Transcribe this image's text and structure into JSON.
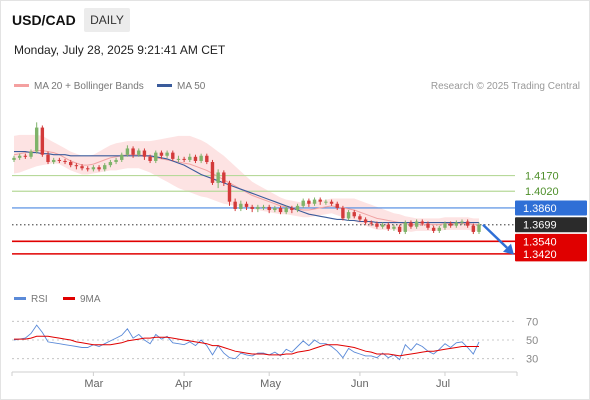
{
  "header": {
    "symbol": "USD/CAD",
    "timeframe": "DAILY"
  },
  "timestamp": "Monday, July 28, 2025 9:21:41 AM CET",
  "legend_main": [
    {
      "label": "MA 20 + Bollinger Bands",
      "color": "#f4a0a0"
    },
    {
      "label": "MA 50",
      "color": "#3a5b9b"
    }
  ],
  "credit": "Research © 2025 Trading Central",
  "legend_rsi": [
    {
      "label": "RSI",
      "color": "#5b8ad8"
    },
    {
      "label": "9MA",
      "color": "#e00000"
    }
  ],
  "colors": {
    "up": "#7fb36a",
    "down": "#d33a3a",
    "rsi": "#5b8ad8",
    "rsi_ma": "#e00000"
  },
  "chart_data": [
    {
      "type": "candlestick",
      "title": "USD/CAD",
      "ylim": [
        1.339,
        1.476
      ],
      "x_labels": [
        "Mar",
        "Apr",
        "May",
        "Jun",
        "Jul"
      ],
      "levels": [
        {
          "label": "1.4170",
          "value": 1.417,
          "kind": "resistance",
          "color": "#b7d99a",
          "text_color": "#4e8f2a"
        },
        {
          "label": "1.4020",
          "value": 1.402,
          "kind": "resistance",
          "color": "#b7d99a",
          "text_color": "#4e8f2a"
        },
        {
          "label": "1.3860",
          "value": 1.386,
          "kind": "pivot",
          "color": "#4a87e0",
          "text_color": "#ffffff",
          "fill": "#2f6fd6"
        },
        {
          "label": "1.3699",
          "value": 1.3699,
          "kind": "last",
          "color": "#333333",
          "text_color": "#ffffff",
          "fill": "#2b2b2b"
        },
        {
          "label": "1.3540",
          "value": 1.354,
          "kind": "support",
          "color": "#e00000",
          "text_color": "#ffffff",
          "fill": "#e00000"
        },
        {
          "label": "1.3420",
          "value": 1.342,
          "kind": "support",
          "color": "#e00000",
          "text_color": "#ffffff",
          "fill": "#e00000"
        }
      ],
      "forecast": {
        "from": 1.3699,
        "to": 1.345,
        "direction": "down"
      },
      "ma20": [
        1.437,
        1.438,
        1.439,
        1.44,
        1.441,
        1.441,
        1.44,
        1.439,
        1.437,
        1.434,
        1.431,
        1.429,
        1.427,
        1.427,
        1.428,
        1.43,
        1.432,
        1.434,
        1.435,
        1.436,
        1.437,
        1.437,
        1.437,
        1.436,
        1.435,
        1.434,
        1.433,
        1.432,
        1.431,
        1.43,
        1.429,
        1.428,
        1.426,
        1.424,
        1.422,
        1.419,
        1.416,
        1.413,
        1.41,
        1.407,
        1.404,
        1.401,
        1.398,
        1.396,
        1.394,
        1.392,
        1.39,
        1.388,
        1.387,
        1.386,
        1.385,
        1.384,
        1.384,
        1.385,
        1.386,
        1.387,
        1.388,
        1.387,
        1.386,
        1.385,
        1.384,
        1.382,
        1.38,
        1.378,
        1.376,
        1.375,
        1.374,
        1.373,
        1.372,
        1.371,
        1.37,
        1.37,
        1.37,
        1.37,
        1.37,
        1.37,
        1.371,
        1.371,
        1.371,
        1.371,
        1.371,
        1.37,
        1.37
      ],
      "ma50": [
        1.44,
        1.44,
        1.44,
        1.439,
        1.439,
        1.438,
        1.438,
        1.437,
        1.437,
        1.437,
        1.436,
        1.436,
        1.436,
        1.436,
        1.436,
        1.436,
        1.436,
        1.436,
        1.436,
        1.436,
        1.436,
        1.436,
        1.436,
        1.436,
        1.436,
        1.435,
        1.434,
        1.433,
        1.431,
        1.429,
        1.427,
        1.424,
        1.421,
        1.418,
        1.416,
        1.414,
        1.412,
        1.41,
        1.408,
        1.406,
        1.404,
        1.402,
        1.4,
        1.398,
        1.396,
        1.394,
        1.392,
        1.39,
        1.388,
        1.386,
        1.384,
        1.382,
        1.38,
        1.379,
        1.378,
        1.377,
        1.376,
        1.375,
        1.375,
        1.374,
        1.374,
        1.373,
        1.373,
        1.373,
        1.372,
        1.372,
        1.372,
        1.372,
        1.372,
        1.372,
        1.372,
        1.372,
        1.372,
        1.372,
        1.372,
        1.372,
        1.372,
        1.372,
        1.372,
        1.372,
        1.372,
        1.372,
        1.372
      ],
      "bb_width": [
        0.018,
        0.018,
        0.017,
        0.016,
        0.015,
        0.014,
        0.012,
        0.01,
        0.009,
        0.009,
        0.009,
        0.009,
        0.009,
        0.009,
        0.009,
        0.01,
        0.011,
        0.012,
        0.013,
        0.013,
        0.013,
        0.013,
        0.013,
        0.014,
        0.015,
        0.017,
        0.019,
        0.021,
        0.023,
        0.025,
        0.026,
        0.027,
        0.027,
        0.027,
        0.026,
        0.025,
        0.024,
        0.023,
        0.021,
        0.019,
        0.017,
        0.015,
        0.013,
        0.012,
        0.011,
        0.01,
        0.009,
        0.008,
        0.007,
        0.007,
        0.007,
        0.007,
        0.007,
        0.007,
        0.007,
        0.007,
        0.007,
        0.008,
        0.009,
        0.01,
        0.011,
        0.011,
        0.011,
        0.011,
        0.011,
        0.01,
        0.009,
        0.008,
        0.008,
        0.007,
        0.007,
        0.006,
        0.006,
        0.006,
        0.006,
        0.006,
        0.006,
        0.006,
        0.006,
        0.006,
        0.006,
        0.006,
        0.006
      ],
      "candles": [
        [
          1.432,
          1.434,
          1.436,
          1.43
        ],
        [
          1.434,
          1.436,
          1.438,
          1.432
        ],
        [
          1.436,
          1.435,
          1.438,
          1.433
        ],
        [
          1.435,
          1.44,
          1.442,
          1.433
        ],
        [
          1.44,
          1.463,
          1.468,
          1.438
        ],
        [
          1.463,
          1.437,
          1.465,
          1.435
        ],
        [
          1.437,
          1.43,
          1.44,
          1.428
        ],
        [
          1.43,
          1.432,
          1.434,
          1.428
        ],
        [
          1.432,
          1.431,
          1.434,
          1.429
        ],
        [
          1.431,
          1.43,
          1.433,
          1.428
        ],
        [
          1.43,
          1.427,
          1.432,
          1.425
        ],
        [
          1.427,
          1.426,
          1.429,
          1.423
        ],
        [
          1.426,
          1.424,
          1.428,
          1.422
        ],
        [
          1.424,
          1.423,
          1.426,
          1.421
        ],
        [
          1.423,
          1.425,
          1.427,
          1.421
        ],
        [
          1.425,
          1.423,
          1.427,
          1.421
        ],
        [
          1.423,
          1.427,
          1.429,
          1.421
        ],
        [
          1.427,
          1.43,
          1.432,
          1.425
        ],
        [
          1.43,
          1.432,
          1.434,
          1.428
        ],
        [
          1.432,
          1.437,
          1.439,
          1.43
        ],
        [
          1.437,
          1.443,
          1.446,
          1.435
        ],
        [
          1.443,
          1.437,
          1.445,
          1.434
        ],
        [
          1.437,
          1.441,
          1.443,
          1.435
        ],
        [
          1.441,
          1.435,
          1.443,
          1.432
        ],
        [
          1.435,
          1.431,
          1.437,
          1.429
        ],
        [
          1.431,
          1.439,
          1.441,
          1.429
        ],
        [
          1.439,
          1.436,
          1.441,
          1.433
        ],
        [
          1.436,
          1.439,
          1.441,
          1.434
        ],
        [
          1.439,
          1.433,
          1.441,
          1.431
        ],
        [
          1.433,
          1.433,
          1.436,
          1.43
        ],
        [
          1.433,
          1.432,
          1.435,
          1.43
        ],
        [
          1.432,
          1.435,
          1.438,
          1.43
        ],
        [
          1.435,
          1.431,
          1.437,
          1.429
        ],
        [
          1.431,
          1.436,
          1.438,
          1.429
        ],
        [
          1.436,
          1.43,
          1.438,
          1.428
        ],
        [
          1.43,
          1.41,
          1.432,
          1.408
        ],
        [
          1.41,
          1.42,
          1.423,
          1.405
        ],
        [
          1.42,
          1.41,
          1.422,
          1.407
        ],
        [
          1.41,
          1.392,
          1.412,
          1.388
        ],
        [
          1.392,
          1.385,
          1.395,
          1.383
        ],
        [
          1.385,
          1.39,
          1.393,
          1.383
        ],
        [
          1.39,
          1.387,
          1.392,
          1.384
        ],
        [
          1.387,
          1.385,
          1.389,
          1.382
        ],
        [
          1.385,
          1.387,
          1.389,
          1.382
        ],
        [
          1.387,
          1.387,
          1.389,
          1.384
        ],
        [
          1.387,
          1.384,
          1.389,
          1.381
        ],
        [
          1.384,
          1.386,
          1.388,
          1.382
        ],
        [
          1.386,
          1.382,
          1.388,
          1.38
        ],
        [
          1.382,
          1.386,
          1.388,
          1.38
        ],
        [
          1.386,
          1.384,
          1.388,
          1.381
        ],
        [
          1.384,
          1.388,
          1.39,
          1.382
        ],
        [
          1.388,
          1.393,
          1.395,
          1.386
        ],
        [
          1.393,
          1.39,
          1.395,
          1.387
        ],
        [
          1.39,
          1.394,
          1.396,
          1.388
        ],
        [
          1.394,
          1.392,
          1.396,
          1.389
        ],
        [
          1.392,
          1.392,
          1.394,
          1.389
        ],
        [
          1.392,
          1.39,
          1.394,
          1.388
        ],
        [
          1.39,
          1.386,
          1.392,
          1.384
        ],
        [
          1.386,
          1.376,
          1.388,
          1.374
        ],
        [
          1.376,
          1.382,
          1.384,
          1.374
        ],
        [
          1.382,
          1.378,
          1.384,
          1.376
        ],
        [
          1.378,
          1.375,
          1.38,
          1.373
        ],
        [
          1.375,
          1.372,
          1.377,
          1.37
        ],
        [
          1.372,
          1.371,
          1.374,
          1.369
        ],
        [
          1.371,
          1.368,
          1.373,
          1.366
        ],
        [
          1.368,
          1.37,
          1.372,
          1.366
        ],
        [
          1.37,
          1.366,
          1.372,
          1.364
        ],
        [
          1.366,
          1.368,
          1.37,
          1.364
        ],
        [
          1.368,
          1.363,
          1.37,
          1.361
        ],
        [
          1.363,
          1.372,
          1.374,
          1.361
        ],
        [
          1.372,
          1.368,
          1.374,
          1.366
        ],
        [
          1.368,
          1.373,
          1.375,
          1.366
        ],
        [
          1.373,
          1.371,
          1.375,
          1.369
        ],
        [
          1.371,
          1.367,
          1.373,
          1.365
        ],
        [
          1.367,
          1.364,
          1.369,
          1.362
        ],
        [
          1.364,
          1.367,
          1.369,
          1.362
        ],
        [
          1.367,
          1.371,
          1.373,
          1.365
        ],
        [
          1.371,
          1.369,
          1.373,
          1.367
        ],
        [
          1.369,
          1.372,
          1.374,
          1.367
        ],
        [
          1.372,
          1.373,
          1.375,
          1.37
        ],
        [
          1.373,
          1.369,
          1.375,
          1.367
        ],
        [
          1.369,
          1.363,
          1.371,
          1.361
        ],
        [
          1.363,
          1.37,
          1.372,
          1.361
        ]
      ]
    },
    {
      "type": "line",
      "title": "RSI",
      "ylim": [
        20,
        80
      ],
      "ticks": [
        70,
        50,
        30
      ],
      "series": [
        {
          "name": "RSI",
          "values": [
            50,
            51,
            52,
            57,
            66,
            58,
            48,
            47,
            46,
            45,
            44,
            43,
            42,
            42,
            45,
            43,
            46,
            49,
            52,
            55,
            62,
            52,
            56,
            50,
            46,
            56,
            51,
            54,
            47,
            46,
            45,
            48,
            44,
            50,
            44,
            34,
            44,
            36,
            31,
            30,
            36,
            34,
            33,
            36,
            36,
            34,
            37,
            33,
            40,
            37,
            43,
            49,
            44,
            50,
            46,
            46,
            43,
            38,
            31,
            41,
            37,
            35,
            33,
            33,
            31,
            36,
            31,
            34,
            29,
            45,
            39,
            46,
            43,
            38,
            35,
            40,
            46,
            42,
            47,
            48,
            42,
            35,
            48
          ]
        },
        {
          "name": "9MA",
          "values": [
            51,
            51,
            51,
            52,
            54,
            54,
            54,
            53,
            52,
            51,
            50,
            48,
            47,
            46,
            45,
            45,
            45,
            45,
            46,
            47,
            49,
            50,
            51,
            52,
            52,
            53,
            53,
            53,
            52,
            51,
            50,
            49,
            48,
            47,
            46,
            44,
            44,
            42,
            40,
            38,
            37,
            36,
            35,
            35,
            35,
            34,
            34,
            34,
            35,
            35,
            37,
            38,
            39,
            41,
            43,
            45,
            45,
            45,
            44,
            43,
            42,
            40,
            38,
            37,
            35,
            35,
            35,
            34,
            33,
            34,
            35,
            36,
            37,
            38,
            38,
            39,
            40,
            41,
            42,
            43,
            43,
            43,
            43
          ]
        }
      ]
    }
  ]
}
